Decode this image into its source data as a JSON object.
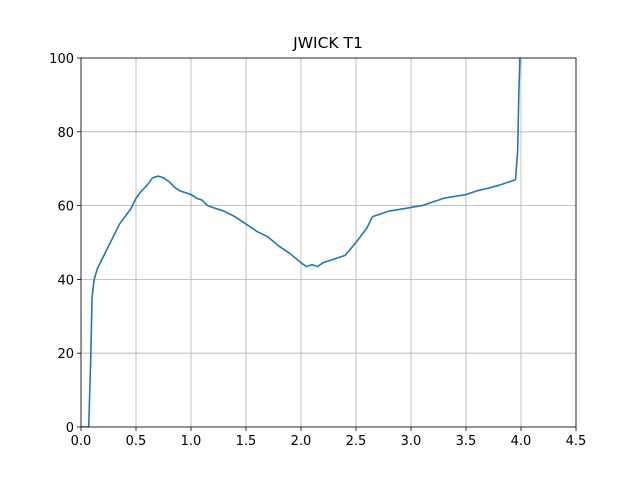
{
  "chart_data": {
    "type": "line",
    "title": "JWICK T1",
    "x": [
      0.0,
      0.07,
      0.09,
      0.1,
      0.12,
      0.15,
      0.2,
      0.25,
      0.3,
      0.35,
      0.4,
      0.45,
      0.5,
      0.55,
      0.6,
      0.65,
      0.7,
      0.75,
      0.8,
      0.85,
      0.9,
      0.95,
      1.0,
      1.05,
      1.1,
      1.15,
      1.2,
      1.3,
      1.4,
      1.5,
      1.6,
      1.7,
      1.8,
      1.9,
      2.0,
      2.05,
      2.1,
      2.15,
      2.2,
      2.3,
      2.4,
      2.5,
      2.6,
      2.65,
      2.7,
      2.8,
      2.9,
      3.0,
      3.1,
      3.2,
      3.3,
      3.4,
      3.5,
      3.6,
      3.7,
      3.8,
      3.9,
      3.95,
      3.97,
      3.98,
      3.99
    ],
    "values": [
      0,
      0,
      20,
      35,
      40,
      43,
      46,
      49,
      52,
      55,
      57,
      59,
      62,
      64,
      65.5,
      67.5,
      68,
      67.5,
      66.5,
      65,
      64,
      63.5,
      63,
      62,
      61.5,
      60,
      59.5,
      58.5,
      57,
      55,
      53,
      51.5,
      49,
      47,
      44.5,
      43.5,
      44,
      43.5,
      44.5,
      45.5,
      46.5,
      50,
      54,
      57,
      57.5,
      58.5,
      59,
      59.5,
      60,
      61,
      62,
      62.5,
      63,
      64,
      64.7,
      65.5,
      66.5,
      67,
      75,
      90,
      100
    ],
    "color": "#1f77b4",
    "xlim": [
      0,
      4.5
    ],
    "xticks": [
      {
        "value": 0,
        "label": "0.0"
      },
      0.5,
      {
        "value": 1,
        "label": "1.0"
      },
      1.5,
      {
        "value": 2,
        "label": "2.0"
      },
      2.5,
      {
        "value": 3,
        "label": "3.0"
      },
      3.5,
      {
        "value": 4,
        "label": "4.0"
      },
      4.5
    ],
    "ylim": [
      0,
      100
    ],
    "yticks": [
      0,
      20,
      40,
      60,
      80,
      100
    ],
    "grid": true
  }
}
